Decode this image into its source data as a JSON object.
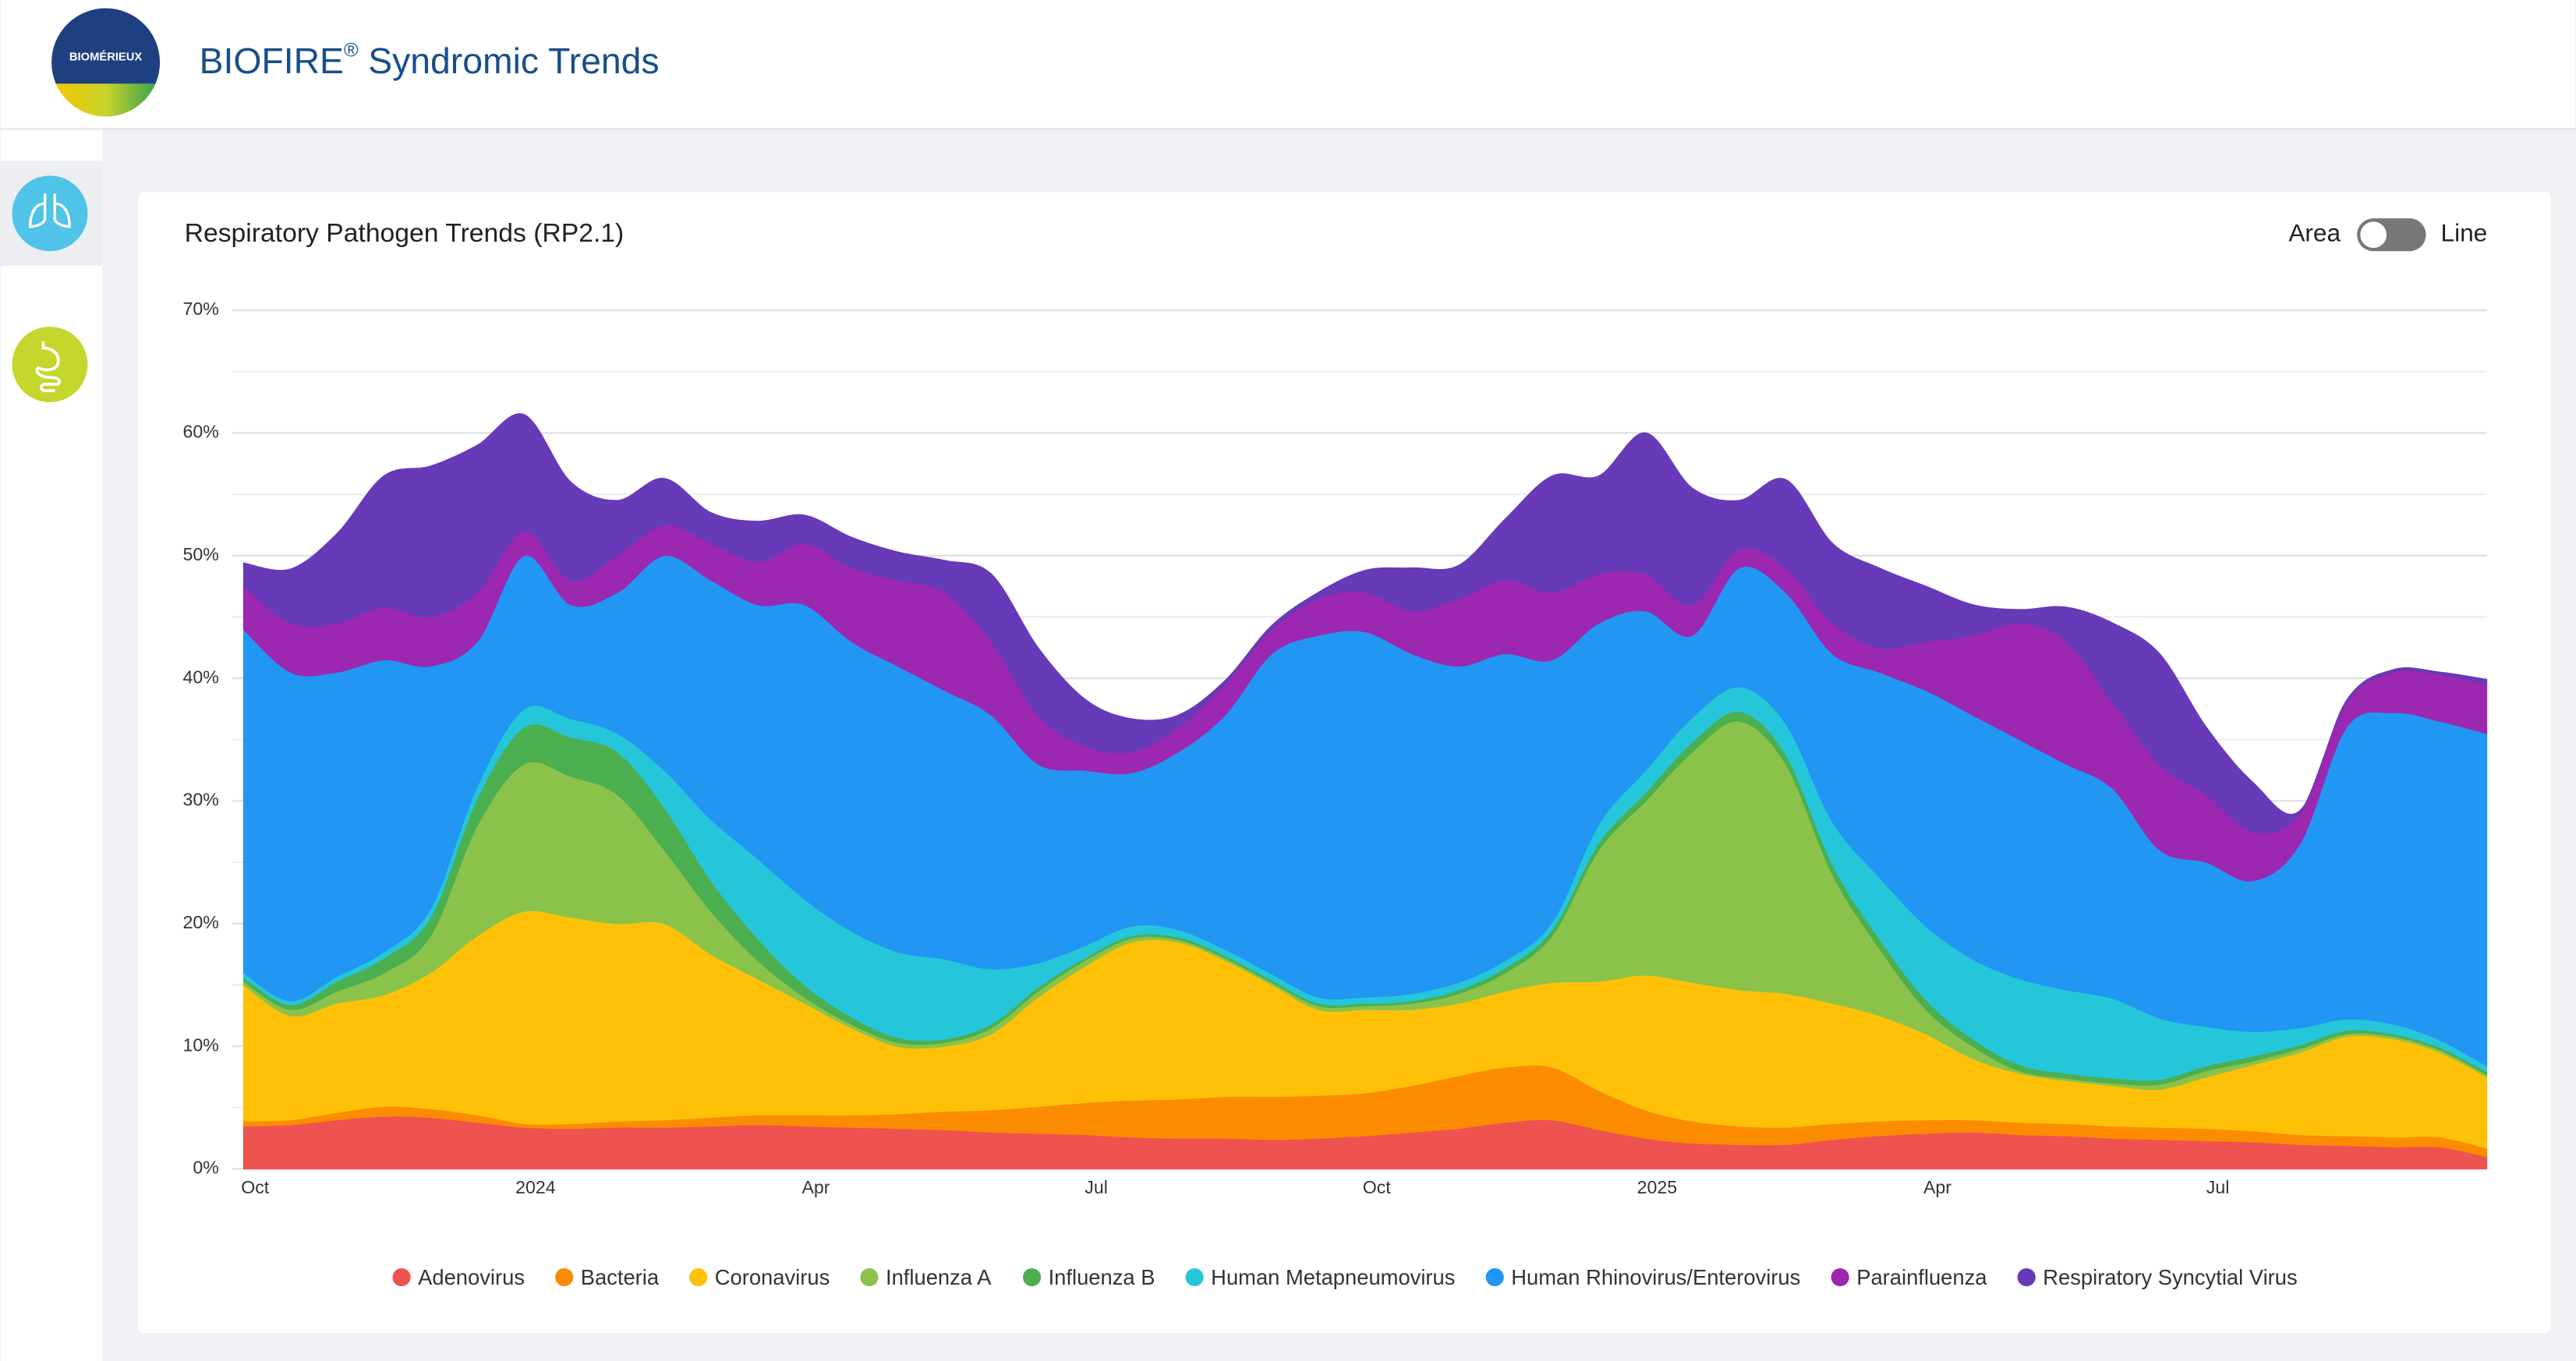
{
  "header": {
    "logo": "BIOMÉRIEUX",
    "brand": "BIOFIRE",
    "mark": "®",
    "title": "Syndromic Trends"
  },
  "toggle": {
    "left": "Area",
    "right": "Line"
  },
  "chart_data": {
    "type": "area",
    "stacked": true,
    "title": "Respiratory Pathogen Trends (RP2.1)",
    "categories": [
      "Oct",
      null,
      null,
      null,
      null,
      null,
      "2024",
      null,
      null,
      null,
      null,
      null,
      "Apr",
      null,
      null,
      null,
      null,
      null,
      "Jul",
      null,
      null,
      null,
      null,
      null,
      "Oct",
      null,
      null,
      null,
      null,
      null,
      "2025",
      null,
      null,
      null,
      null,
      null,
      "Apr",
      null,
      null,
      null,
      null,
      null,
      "Jul",
      null,
      null,
      null,
      null,
      null,
      null
    ],
    "ylim": [
      0,
      70
    ],
    "yticks": [
      {
        "value": 0,
        "label": "0%"
      },
      {
        "value": 10,
        "label": "10%"
      },
      {
        "value": 20,
        "label": "20%"
      },
      {
        "value": 30,
        "label": "30%"
      },
      {
        "value": 40,
        "label": "40%"
      },
      {
        "value": 50,
        "label": "50%"
      },
      {
        "value": 60,
        "label": "60%"
      },
      {
        "value": 70,
        "label": "70%"
      }
    ],
    "minor_yticks": [
      5,
      15,
      25,
      35,
      45,
      55,
      65
    ],
    "grid": true,
    "legend": "bottom",
    "series": [
      {
        "name": "Adenovirus",
        "color": "#ef5350",
        "values": [
          3.5,
          3.6,
          4.0,
          4.3,
          4.2,
          3.8,
          3.4,
          3.3,
          3.4,
          3.4,
          3.5,
          3.6,
          3.5,
          3.4,
          3.3,
          3.2,
          3.0,
          2.9,
          2.8,
          2.6,
          2.5,
          2.5,
          2.4,
          2.5,
          2.7,
          3.0,
          3.3,
          3.8,
          4.0,
          3.2,
          2.5,
          2.1,
          2.0,
          2.0,
          2.4,
          2.7,
          2.9,
          3.0,
          2.8,
          2.7,
          2.5,
          2.4,
          2.3,
          2.2,
          2.0,
          1.9,
          1.8,
          1.8,
          1.0
        ]
      },
      {
        "name": "Bacteria",
        "color": "#fb8c00",
        "values": [
          0.4,
          0.4,
          0.6,
          0.8,
          0.7,
          0.6,
          0.3,
          0.4,
          0.5,
          0.6,
          0.7,
          0.8,
          0.9,
          1.0,
          1.2,
          1.5,
          1.8,
          2.2,
          2.6,
          3.0,
          3.2,
          3.4,
          3.5,
          3.5,
          3.5,
          3.8,
          4.3,
          4.5,
          4.3,
          3.2,
          2.3,
          1.8,
          1.5,
          1.4,
          1.3,
          1.2,
          1.1,
          1.0,
          1.0,
          1.0,
          1.0,
          1.0,
          1.0,
          0.9,
          0.8,
          0.8,
          0.8,
          0.8,
          0.7
        ]
      },
      {
        "name": "Coronavirus",
        "color": "#ffc107",
        "values": [
          11.1,
          8.5,
          8.9,
          9.1,
          11.1,
          14.6,
          17.3,
          16.8,
          16.1,
          16.0,
          13.3,
          11.1,
          9.1,
          7.1,
          5.5,
          5.3,
          6.2,
          8.9,
          11.1,
          12.9,
          12.8,
          11.1,
          9.1,
          7.0,
          6.8,
          6.2,
          5.9,
          6.2,
          6.9,
          8.9,
          11.0,
          11.3,
          11.1,
          10.9,
          9.8,
          8.6,
          7.0,
          5.0,
          4.0,
          3.5,
          3.3,
          3.1,
          4.2,
          5.4,
          6.7,
          8.1,
          8.0,
          6.9,
          5.8
        ]
      },
      {
        "name": "Influenza A",
        "color": "#8bc34a",
        "values": [
          0.3,
          0.5,
          1.0,
          1.8,
          3.0,
          9.0,
          12.0,
          11.5,
          10.5,
          6.0,
          3.5,
          1.5,
          0.5,
          0.3,
          0.3,
          0.3,
          0.5,
          0.5,
          0.5,
          0.3,
          0.2,
          0.2,
          0.2,
          0.3,
          0.3,
          0.5,
          0.8,
          1.5,
          3.8,
          10.7,
          14.2,
          18.8,
          21.9,
          18.7,
          10.5,
          5.5,
          2.0,
          1.0,
          0.2,
          0.2,
          0.2,
          0.4,
          0.5,
          0.3,
          0.3,
          0.2,
          0.2,
          0.2,
          0.2
        ]
      },
      {
        "name": "Influenza B",
        "color": "#4caf50",
        "values": [
          0.3,
          0.4,
          0.8,
          1.2,
          1.5,
          2.2,
          3.0,
          3.2,
          3.5,
          3.5,
          2.5,
          1.8,
          1.0,
          0.6,
          0.4,
          0.3,
          0.3,
          0.3,
          0.2,
          0.2,
          0.2,
          0.2,
          0.2,
          0.2,
          0.2,
          0.2,
          0.3,
          0.4,
          0.5,
          0.6,
          0.7,
          0.8,
          0.8,
          0.8,
          0.8,
          0.8,
          0.8,
          0.6,
          0.5,
          0.4,
          0.4,
          0.4,
          0.4,
          0.4,
          0.3,
          0.3,
          0.2,
          0.2,
          0.2
        ]
      },
      {
        "name": "Human Metapneumovirus",
        "color": "#26c6da",
        "values": [
          0.4,
          0.3,
          0.4,
          0.5,
          0.7,
          1.0,
          1.5,
          1.5,
          1.5,
          3.0,
          5.0,
          6.5,
          7.0,
          7.0,
          7.0,
          6.5,
          4.5,
          2.0,
          1.0,
          0.8,
          0.6,
          0.5,
          0.5,
          0.5,
          0.5,
          0.6,
          0.6,
          0.6,
          0.6,
          1.5,
          1.8,
          2.0,
          2.0,
          2.5,
          3.5,
          5.0,
          6.0,
          6.5,
          7.0,
          6.8,
          6.5,
          5.0,
          3.2,
          2.0,
          1.4,
          0.9,
          0.8,
          0.6,
          0.5
        ]
      },
      {
        "name": "Human Rhinovirus/Enterovirus",
        "color": "#2196f3",
        "values": [
          28.0,
          26.8,
          24.8,
          23.8,
          19.8,
          11.8,
          12.5,
          9.3,
          11.5,
          17.5,
          19.5,
          20.7,
          24.0,
          23.6,
          23.3,
          21.9,
          20.7,
          16.2,
          14.3,
          12.5,
          14.5,
          19.1,
          26.1,
          29.5,
          29.8,
          27.7,
          25.8,
          25.0,
          21.4,
          16.4,
          13.0,
          6.7,
          9.7,
          10.7,
          13.7,
          16.7,
          19.2,
          19.9,
          19.5,
          18.4,
          17.1,
          13.7,
          13.4,
          12.3,
          15.0,
          23.8,
          25.4,
          26.0,
          27.1
        ]
      },
      {
        "name": "Parainfluenza",
        "color": "#9c27b0",
        "values": [
          3.5,
          4.0,
          4.0,
          4.3,
          4.0,
          4.0,
          2.0,
          2.0,
          3.0,
          2.5,
          3.0,
          3.5,
          5.0,
          6.0,
          7.0,
          8.0,
          6.0,
          4.0,
          2.0,
          1.7,
          2.0,
          2.5,
          2.0,
          3.0,
          3.2,
          3.5,
          5.5,
          6.0,
          5.5,
          4.0,
          3.0,
          2.5,
          1.5,
          2.0,
          2.5,
          2.0,
          4.0,
          6.5,
          9.5,
          10.0,
          7.0,
          7.0,
          5.5,
          4.0,
          2.5,
          2.0,
          3.3,
          3.8,
          4.0
        ]
      },
      {
        "name": "Respiratory Syncytial Virus",
        "color": "#673ab7",
        "values": [
          1.9,
          4.4,
          7.3,
          10.7,
          12.3,
          12.0,
          9.5,
          8.0,
          4.5,
          3.8,
          2.5,
          3.3,
          2.3,
          2.5,
          2.3,
          2.6,
          5.5,
          5.5,
          3.8,
          2.7,
          1.0,
          0.3,
          0.3,
          0.5,
          1.8,
          3.5,
          2.7,
          5.0,
          9.5,
          8.0,
          11.5,
          9.5,
          4.0,
          7.2,
          6.5,
          6.5,
          4.5,
          2.5,
          1.1,
          2.8,
          6.5,
          9.0,
          5.5,
          4.0,
          0.2,
          0.2,
          0.2,
          0.2,
          0.4
        ]
      }
    ]
  }
}
